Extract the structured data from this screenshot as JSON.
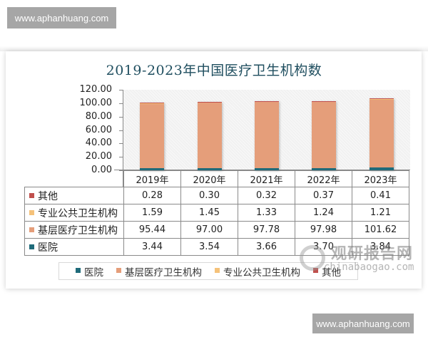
{
  "watermarks": {
    "top_badge": "www.aphanhuang.com",
    "bottom_badge": "www.aphanhuang.com",
    "overlay_cn": "观研报告网",
    "overlay_en": "chinabaogao.com"
  },
  "chart": {
    "title": "2019-2023年中国医疗卫生机构数",
    "y_ticks": [
      "120.00",
      "100.00",
      "80.00",
      "60.00",
      "40.00",
      "20.00",
      "0.00"
    ],
    "categories": [
      "2019年",
      "2020年",
      "2021年",
      "2022年",
      "2023年"
    ],
    "table_rows": [
      {
        "label": "其他",
        "color": "#c0504d",
        "values": [
          "0.28",
          "0.30",
          "0.32",
          "0.37",
          "0.41"
        ]
      },
      {
        "label": "专业公共卫生机构",
        "color": "#f5c27a",
        "values": [
          "1.59",
          "1.45",
          "1.33",
          "1.24",
          "1.21"
        ]
      },
      {
        "label": "基层医疗卫生机构",
        "color": "#e59e7a",
        "values": [
          "95.44",
          "97.00",
          "97.78",
          "97.98",
          "101.62"
        ]
      },
      {
        "label": "医院",
        "color": "#1f6b7a",
        "values": [
          "3.44",
          "3.54",
          "3.66",
          "3.70",
          "3.84"
        ]
      }
    ],
    "legend": [
      {
        "label": "医院",
        "color": "#1f6b7a"
      },
      {
        "label": "基层医疗卫生机构",
        "color": "#e59e7a"
      },
      {
        "label": "专业公共卫生机构",
        "color": "#f5c27a"
      },
      {
        "label": "其他",
        "color": "#c0504d"
      }
    ]
  },
  "chart_data": {
    "type": "bar",
    "stacked": true,
    "title": "2019-2023年中国医疗卫生机构数",
    "xlabel": "",
    "ylabel": "",
    "ylim": [
      0,
      120
    ],
    "y_ticks": [
      0,
      20,
      40,
      60,
      80,
      100,
      120
    ],
    "categories": [
      "2019年",
      "2020年",
      "2021年",
      "2022年",
      "2023年"
    ],
    "series": [
      {
        "name": "医院",
        "color": "#1f6b7a",
        "values": [
          3.44,
          3.54,
          3.66,
          3.7,
          3.84
        ]
      },
      {
        "name": "基层医疗卫生机构",
        "color": "#e59e7a",
        "values": [
          95.44,
          97.0,
          97.78,
          97.98,
          101.62
        ]
      },
      {
        "name": "专业公共卫生机构",
        "color": "#f5c27a",
        "values": [
          1.59,
          1.45,
          1.33,
          1.24,
          1.21
        ]
      },
      {
        "name": "其他",
        "color": "#c0504d",
        "values": [
          0.28,
          0.3,
          0.32,
          0.37,
          0.41
        ]
      }
    ],
    "legend_position": "bottom",
    "data_table": true,
    "grid": false
  }
}
